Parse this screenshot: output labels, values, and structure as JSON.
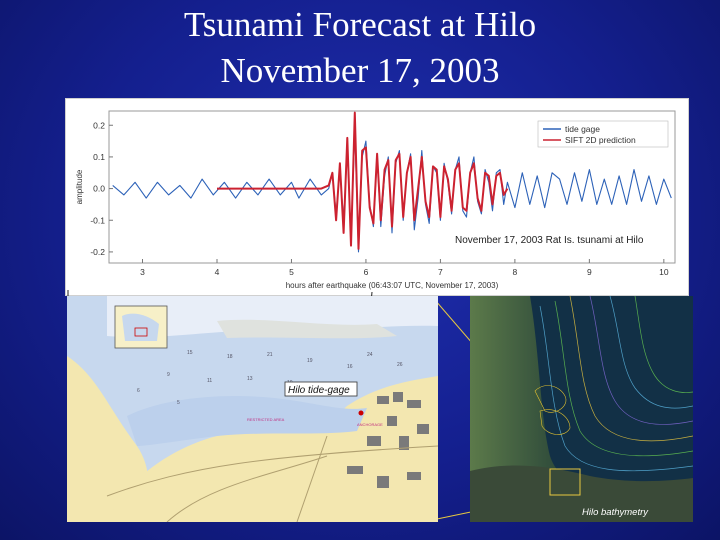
{
  "slide": {
    "title_line1": "Tsunami Forecast at Hilo",
    "title_line2": "November 17, 2003"
  },
  "chart_data": {
    "type": "line",
    "xlabel": "hours after earthquake (06:43:07 UTC, November 17, 2003)",
    "ylabel": "amplitude",
    "xlim": [
      2.55,
      10.15
    ],
    "ylim": [
      -0.235,
      0.245
    ],
    "xticks": [
      3,
      4,
      5,
      6,
      7,
      8,
      9,
      10
    ],
    "yticks": [
      0.2,
      0.1,
      0.0,
      -0.1,
      -0.2
    ],
    "ytick_labels": [
      "0.2",
      "0.1",
      "0.0",
      "-0.1",
      "-0.2"
    ],
    "grid": false,
    "legend_position": "top-right",
    "annotation": "November 17, 2003 Rat Is. tsunami at Hilo",
    "series": [
      {
        "name": "tide gage",
        "color": "#2d62b8",
        "x": [
          2.6,
          2.75,
          2.9,
          3.05,
          3.2,
          3.35,
          3.5,
          3.65,
          3.8,
          3.95,
          4.1,
          4.25,
          4.4,
          4.55,
          4.7,
          4.85,
          5.0,
          5.1,
          5.25,
          5.4,
          5.5,
          5.55,
          5.6,
          5.65,
          5.7,
          5.75,
          5.8,
          5.85,
          5.9,
          5.95,
          6.0,
          6.05,
          6.1,
          6.15,
          6.2,
          6.25,
          6.3,
          6.35,
          6.4,
          6.45,
          6.5,
          6.55,
          6.6,
          6.65,
          6.7,
          6.75,
          6.8,
          6.85,
          6.9,
          6.95,
          7.0,
          7.05,
          7.1,
          7.15,
          7.2,
          7.25,
          7.3,
          7.35,
          7.4,
          7.45,
          7.5,
          7.55,
          7.6,
          7.65,
          7.7,
          7.75,
          7.8,
          7.85,
          7.9,
          8.0,
          8.1,
          8.2,
          8.3,
          8.4,
          8.5,
          8.6,
          8.7,
          8.8,
          8.9,
          9.0,
          9.1,
          9.2,
          9.3,
          9.4,
          9.5,
          9.6,
          9.7,
          9.8,
          9.9,
          10.0,
          10.1
        ],
        "y": [
          0.01,
          -0.02,
          0.02,
          -0.03,
          0.02,
          -0.02,
          0.01,
          -0.03,
          0.03,
          -0.02,
          0.02,
          -0.03,
          0.02,
          -0.02,
          0.03,
          -0.02,
          0.02,
          -0.03,
          0.03,
          -0.02,
          0.0,
          0.05,
          -0.08,
          0.06,
          -0.1,
          0.12,
          -0.15,
          0.18,
          -0.2,
          0.1,
          0.15,
          -0.05,
          -0.12,
          0.1,
          -0.12,
          0.04,
          0.1,
          -0.14,
          0.08,
          0.12,
          -0.1,
          0.05,
          0.11,
          -0.13,
          -0.03,
          0.12,
          -0.05,
          -0.11,
          0.07,
          0.05,
          -0.1,
          0.08,
          0.02,
          -0.08,
          0.06,
          0.1,
          -0.07,
          -0.09,
          0.05,
          0.1,
          -0.04,
          -0.08,
          0.06,
          0.02,
          -0.07,
          0.05,
          0.06,
          -0.05,
          0.02,
          -0.06,
          0.05,
          -0.05,
          0.04,
          -0.06,
          0.05,
          0.03,
          -0.05,
          0.05,
          -0.04,
          0.06,
          -0.05,
          0.03,
          -0.05,
          0.04,
          -0.05,
          0.06,
          -0.04,
          0.04,
          -0.05,
          0.03,
          -0.03
        ]
      },
      {
        "name": "SIFT 2D prediction",
        "color": "#cc2230",
        "x": [
          4.0,
          4.5,
          5.0,
          5.3,
          5.4,
          5.5,
          5.55,
          5.6,
          5.65,
          5.7,
          5.75,
          5.8,
          5.85,
          5.9,
          5.95,
          6.0,
          6.05,
          6.1,
          6.15,
          6.2,
          6.25,
          6.3,
          6.35,
          6.4,
          6.45,
          6.5,
          6.55,
          6.6,
          6.65,
          6.7,
          6.75,
          6.8,
          6.85,
          6.9,
          6.95,
          7.0,
          7.05,
          7.1,
          7.15,
          7.2,
          7.25,
          7.3,
          7.35,
          7.4,
          7.45,
          7.5,
          7.55,
          7.6,
          7.65,
          7.7,
          7.75,
          7.8,
          7.85,
          7.9
        ],
        "y": [
          0.0,
          0.0,
          0.0,
          0.0,
          0.0,
          0.01,
          0.05,
          -0.1,
          0.08,
          -0.14,
          0.16,
          -0.18,
          0.24,
          -0.19,
          0.12,
          0.13,
          -0.06,
          -0.11,
          0.11,
          -0.1,
          0.06,
          0.09,
          -0.12,
          0.09,
          0.11,
          -0.09,
          0.05,
          0.1,
          -0.1,
          0.0,
          0.1,
          -0.04,
          -0.09,
          0.07,
          0.06,
          -0.09,
          0.07,
          0.03,
          -0.07,
          0.06,
          0.08,
          -0.06,
          -0.07,
          0.05,
          0.08,
          -0.03,
          -0.07,
          0.05,
          0.04,
          -0.05,
          0.04,
          0.05,
          -0.02,
          0.0
        ]
      }
    ]
  },
  "map": {
    "label": "Hilo tide-gage",
    "land_color": "#f3e7b0",
    "water_color": "#c7d8ee"
  },
  "bathymetry": {
    "label": "Hilo bathymetry"
  },
  "colors": {
    "background": "#141f8e",
    "title": "#ffffff",
    "connector": "#e8c840"
  }
}
